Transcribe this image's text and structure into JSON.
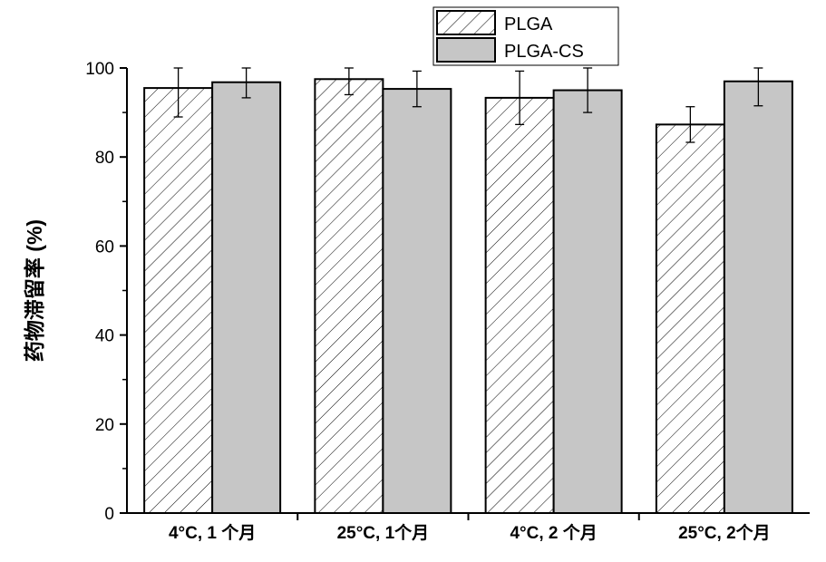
{
  "chart_data": {
    "type": "bar",
    "ylabel": "药物滞留率 (%)",
    "ylim": [
      0,
      100
    ],
    "yticks": [
      0,
      20,
      40,
      60,
      80,
      100
    ],
    "categories": [
      "4°C, 1 个月",
      "25°C, 1个月",
      "4°C, 2 个月",
      "25°C, 2个月"
    ],
    "series": [
      {
        "name": "PLGA",
        "pattern": "hatched",
        "color": "#ffffff",
        "values": [
          95.5,
          97.5,
          93.3,
          87.3
        ],
        "errors": [
          6.5,
          3.5,
          6.0,
          4.0
        ]
      },
      {
        "name": "PLGA-CS",
        "pattern": "solid",
        "color": "#c6c6c6",
        "values": [
          96.8,
          95.3,
          95.0,
          97.0
        ],
        "errors": [
          3.5,
          4.0,
          5.0,
          5.5
        ]
      }
    ],
    "legend_position": "top",
    "grid": false
  }
}
